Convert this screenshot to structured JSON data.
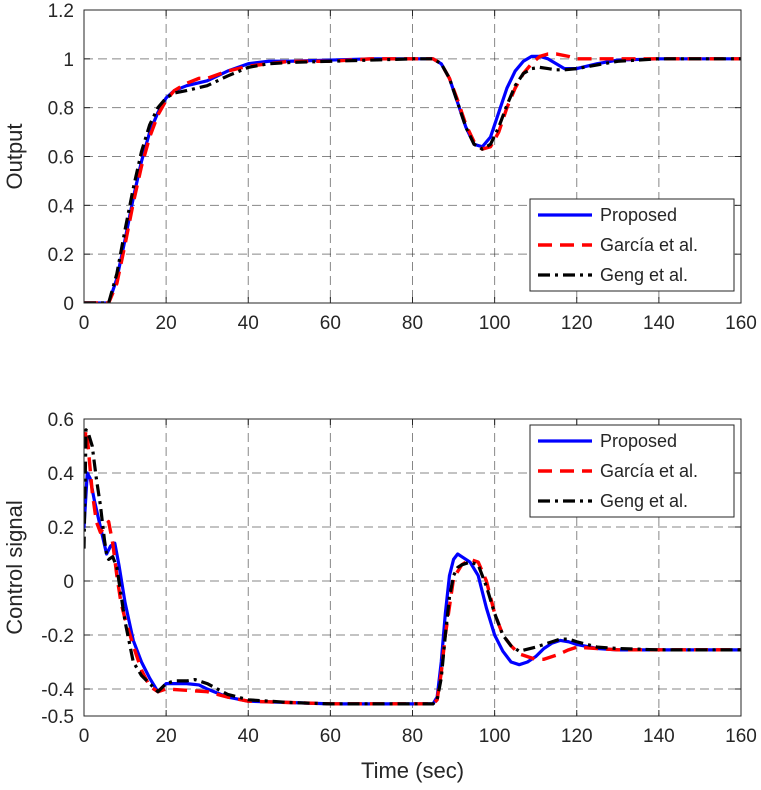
{
  "chart_data": [
    {
      "type": "line",
      "xlabel": "",
      "ylabel": "Output",
      "xlim": [
        0,
        160
      ],
      "ylim": [
        0,
        1.2
      ],
      "xticks": [
        0,
        20,
        40,
        60,
        80,
        100,
        120,
        140,
        160
      ],
      "yticks": [
        0,
        0.2,
        0.4,
        0.6,
        0.8,
        1,
        1.2
      ],
      "grid": true,
      "legend": "bottom-right",
      "series": [
        {
          "name": "Proposed",
          "color": "#0000ff",
          "style": "solid",
          "x": [
            0,
            6,
            8,
            10,
            12,
            14,
            16,
            18,
            20,
            22,
            25,
            30,
            35,
            40,
            45,
            50,
            60,
            70,
            80,
            85,
            87,
            89,
            91,
            93,
            95,
            97,
            99,
            101,
            103,
            105,
            107,
            109,
            111,
            113,
            115,
            117,
            120,
            125,
            130,
            140,
            150,
            160
          ],
          "y": [
            0,
            0,
            0.1,
            0.26,
            0.43,
            0.58,
            0.7,
            0.78,
            0.84,
            0.87,
            0.89,
            0.91,
            0.95,
            0.98,
            0.99,
            0.99,
            0.995,
            1,
            1,
            1,
            0.98,
            0.92,
            0.82,
            0.72,
            0.65,
            0.64,
            0.68,
            0.78,
            0.88,
            0.95,
            0.99,
            1.01,
            1.01,
            1.0,
            0.98,
            0.96,
            0.96,
            0.98,
            0.995,
            1,
            1,
            1
          ]
        },
        {
          "name": "García et al.",
          "color": "#ff0000",
          "style": "dashed",
          "x": [
            0,
            6,
            8,
            10,
            12,
            14,
            16,
            18,
            20,
            22,
            25,
            28,
            30,
            35,
            40,
            45,
            50,
            60,
            70,
            80,
            85,
            87,
            89,
            91,
            93,
            95,
            97,
            99,
            101,
            103,
            105,
            107,
            109,
            111,
            113,
            115,
            118,
            120,
            125,
            130,
            140,
            150,
            160
          ],
          "y": [
            0,
            0,
            0.08,
            0.24,
            0.41,
            0.56,
            0.68,
            0.77,
            0.83,
            0.87,
            0.9,
            0.92,
            0.92,
            0.95,
            0.97,
            0.98,
            0.99,
            0.99,
            1,
            1,
            1,
            0.98,
            0.92,
            0.83,
            0.73,
            0.66,
            0.63,
            0.64,
            0.7,
            0.8,
            0.88,
            0.94,
            0.98,
            1.01,
            1.02,
            1.02,
            1.01,
            1.0,
            1.0,
            1.0,
            1,
            1,
            1
          ]
        },
        {
          "name": "Geng et al.",
          "color": "#000000",
          "style": "dashdot",
          "x": [
            0,
            6,
            8,
            10,
            12,
            14,
            16,
            18,
            20,
            22,
            25,
            30,
            35,
            40,
            45,
            50,
            60,
            70,
            80,
            85,
            87,
            89,
            91,
            93,
            95,
            97,
            99,
            101,
            103,
            105,
            107,
            109,
            111,
            113,
            115,
            117,
            120,
            125,
            130,
            140,
            150,
            160
          ],
          "y": [
            0,
            0,
            0.12,
            0.3,
            0.47,
            0.62,
            0.73,
            0.8,
            0.84,
            0.86,
            0.87,
            0.89,
            0.93,
            0.965,
            0.98,
            0.985,
            0.99,
            0.995,
            1,
            1,
            0.98,
            0.92,
            0.82,
            0.72,
            0.65,
            0.63,
            0.65,
            0.72,
            0.81,
            0.89,
            0.94,
            0.96,
            0.965,
            0.96,
            0.955,
            0.955,
            0.96,
            0.975,
            0.99,
            1,
            1,
            1
          ]
        }
      ]
    },
    {
      "type": "line",
      "xlabel": "Time (sec)",
      "ylabel": "Control signal",
      "xlim": [
        0,
        160
      ],
      "ylim": [
        -0.5,
        0.6
      ],
      "xticks": [
        0,
        20,
        40,
        60,
        80,
        100,
        120,
        140,
        160
      ],
      "yticks": [
        -0.5,
        -0.4,
        -0.2,
        0,
        0.2,
        0.4,
        0.6
      ],
      "grid": true,
      "legend": "top-right",
      "series": [
        {
          "name": "Proposed",
          "color": "#0000ff",
          "style": "solid",
          "x": [
            0,
            0.8,
            1.5,
            2.5,
            4,
            5.5,
            6.5,
            7.5,
            8.5,
            10,
            12,
            14,
            16,
            18,
            20,
            22,
            25,
            28,
            30,
            35,
            40,
            50,
            60,
            70,
            80,
            85,
            86,
            87,
            88,
            89,
            90,
            91,
            92,
            94,
            96,
            98,
            100,
            102,
            104,
            106,
            108,
            110,
            112,
            114,
            116,
            118,
            120,
            125,
            130,
            140,
            150,
            160
          ],
          "y": [
            0.2,
            0.4,
            0.38,
            0.3,
            0.2,
            0.1,
            0.13,
            0.14,
            0.06,
            -0.08,
            -0.22,
            -0.3,
            -0.36,
            -0.41,
            -0.38,
            -0.38,
            -0.38,
            -0.385,
            -0.4,
            -0.43,
            -0.445,
            -0.45,
            -0.455,
            -0.455,
            -0.455,
            -0.455,
            -0.43,
            -0.3,
            -0.12,
            0.02,
            0.08,
            0.1,
            0.09,
            0.07,
            0.02,
            -0.1,
            -0.2,
            -0.26,
            -0.3,
            -0.31,
            -0.3,
            -0.28,
            -0.25,
            -0.23,
            -0.22,
            -0.225,
            -0.235,
            -0.25,
            -0.255,
            -0.255,
            -0.255,
            -0.255
          ]
        },
        {
          "name": "García et al.",
          "color": "#ff0000",
          "style": "dashed",
          "x": [
            0,
            0.5,
            1,
            2,
            3,
            4,
            5,
            6,
            7,
            8,
            9,
            10,
            12,
            14,
            16,
            18,
            20,
            25,
            30,
            35,
            40,
            50,
            60,
            70,
            80,
            85,
            86,
            87,
            88,
            90,
            92,
            94,
            96,
            98,
            100,
            102,
            104,
            106,
            108,
            110,
            112,
            115,
            118,
            120,
            125,
            130,
            140,
            150,
            160
          ],
          "y": [
            0.5,
            0.56,
            0.5,
            0.33,
            0.22,
            0.18,
            0.2,
            0.22,
            0.14,
            0.02,
            -0.08,
            -0.14,
            -0.24,
            -0.33,
            -0.39,
            -0.41,
            -0.4,
            -0.405,
            -0.41,
            -0.43,
            -0.445,
            -0.45,
            -0.455,
            -0.455,
            -0.455,
            -0.455,
            -0.44,
            -0.34,
            -0.2,
            0.01,
            0.06,
            0.08,
            0.07,
            0.0,
            -0.12,
            -0.2,
            -0.24,
            -0.27,
            -0.28,
            -0.29,
            -0.29,
            -0.275,
            -0.255,
            -0.245,
            -0.25,
            -0.255,
            -0.255,
            -0.255,
            -0.255
          ]
        },
        {
          "name": "Geng et al.",
          "color": "#000000",
          "style": "dashdot",
          "x": [
            0,
            0.5,
            1,
            2,
            3,
            4,
            5,
            5.5,
            6,
            7,
            8,
            9,
            10,
            12,
            14,
            16,
            18,
            20,
            22,
            25,
            27,
            30,
            35,
            40,
            50,
            60,
            70,
            80,
            85,
            86,
            87,
            88,
            89,
            90,
            91,
            92,
            94,
            96,
            98,
            100,
            102,
            104,
            106,
            110,
            114,
            116,
            118,
            120,
            125,
            130,
            140,
            150,
            160
          ],
          "y": [
            0.12,
            0.56,
            0.55,
            0.5,
            0.38,
            0.28,
            0.15,
            0.1,
            0.08,
            0.09,
            0.05,
            -0.05,
            -0.15,
            -0.3,
            -0.35,
            -0.38,
            -0.41,
            -0.38,
            -0.37,
            -0.37,
            -0.365,
            -0.38,
            -0.42,
            -0.44,
            -0.45,
            -0.455,
            -0.455,
            -0.455,
            -0.455,
            -0.44,
            -0.36,
            -0.2,
            -0.06,
            0.02,
            0.05,
            0.06,
            0.07,
            0.06,
            -0.02,
            -0.12,
            -0.2,
            -0.24,
            -0.26,
            -0.245,
            -0.225,
            -0.215,
            -0.215,
            -0.225,
            -0.245,
            -0.25,
            -0.255,
            -0.255,
            -0.255
          ]
        }
      ]
    }
  ]
}
